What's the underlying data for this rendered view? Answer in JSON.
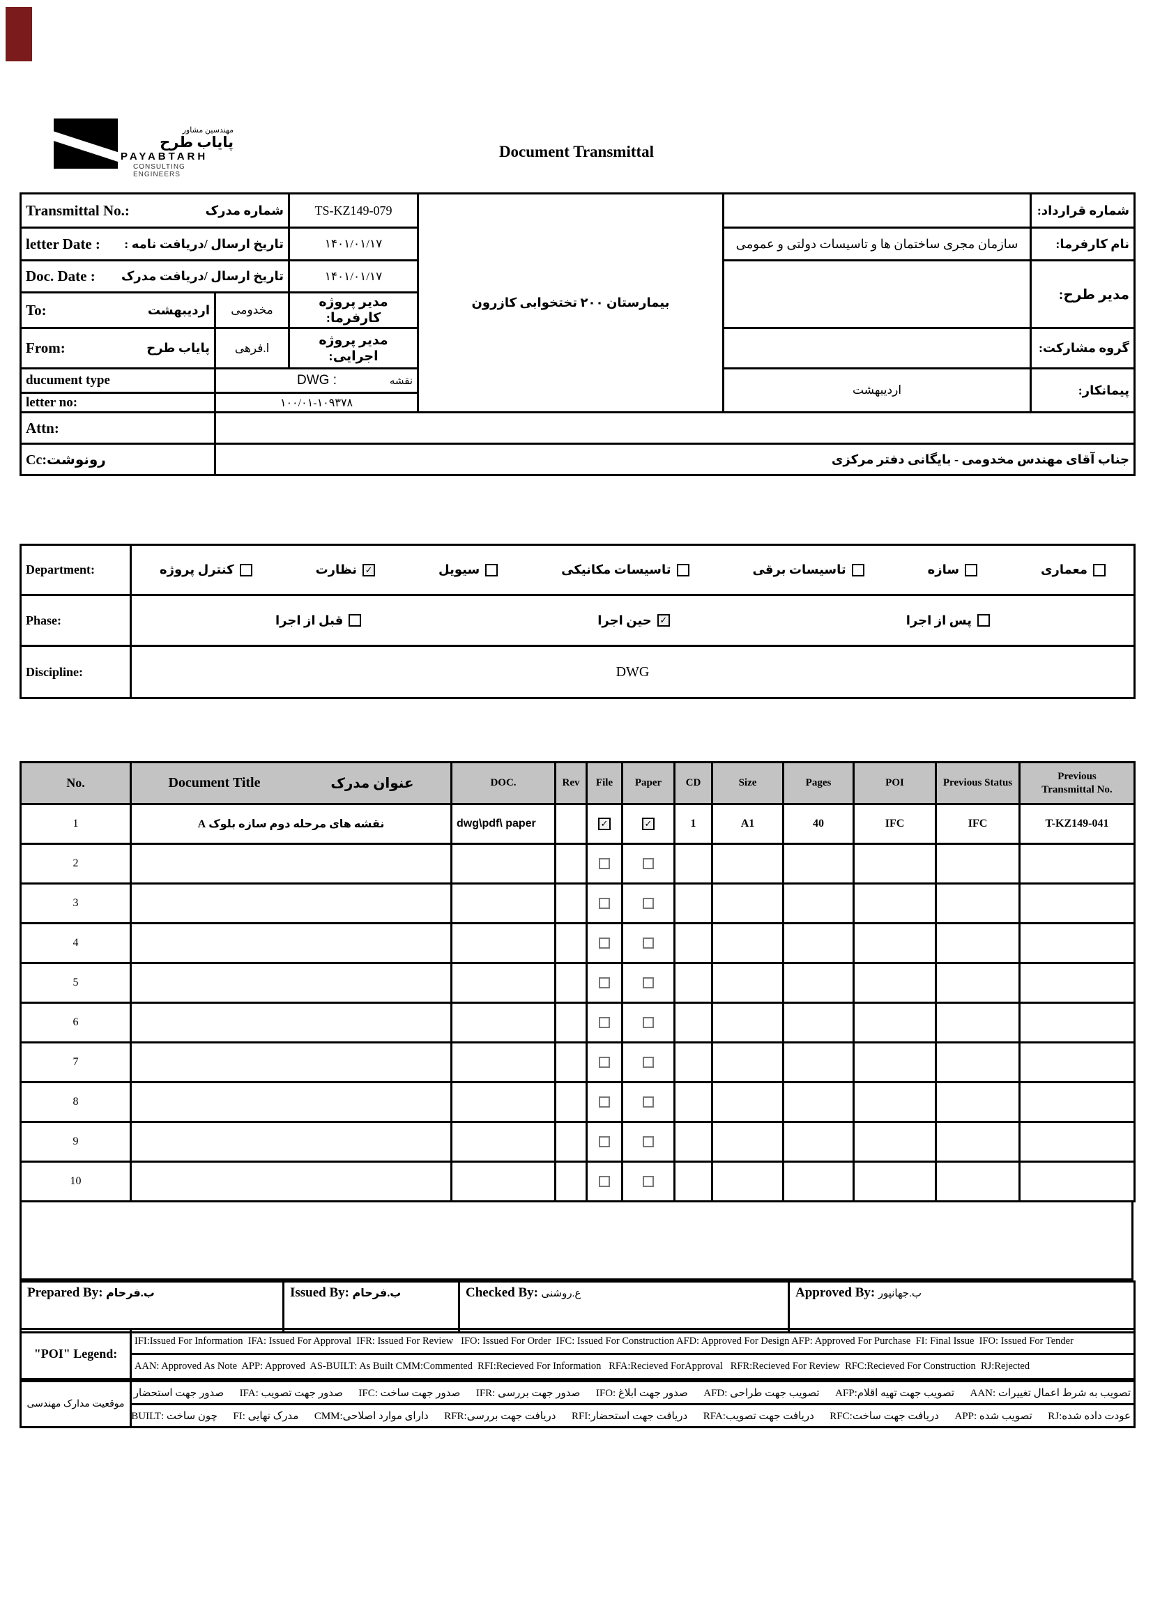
{
  "page": {
    "title": "Document Transmittal"
  },
  "logo": {
    "fa_small": "مهندسین مشاور",
    "fa_name": "پایاب طرح",
    "en_name": "PAYABTARH",
    "en_sub": "CONSULTING ENGINEERS"
  },
  "header": {
    "transmittal_no_label": "Transmittal No.:",
    "transmittal_no_label_fa": "شماره مدرک",
    "transmittal_no_value": "TS-KZ149-079",
    "letter_date_label": "letter Date :",
    "letter_date_label_fa": "تاریخ ارسال /دریافت نامه :",
    "letter_date_value": "۱۴۰۱/۰۱/۱۷",
    "doc_date_label": "Doc. Date :",
    "doc_date_label_fa": "تاریخ ارسال /دریافت مدرک",
    "doc_date_value": "۱۴۰۱/۰۱/۱۷",
    "to_label": "To:",
    "to_value": "اردیبهشت",
    "to_person": "مخدومی",
    "to_role_fa": "مدیر پروژه کارفرما:",
    "from_label": "From:",
    "from_value": "پایاب طرح",
    "from_person": "ا.فرهی",
    "from_role_fa": "مدیر پروژه اجرایی:",
    "document_type_label": "ducument type",
    "document_type_value": "DWG :",
    "document_type_fa": "نقشه",
    "letter_no_label": "letter no:",
    "letter_no_value": "۱۰۰/۰۱-۱۰۹۳۷۸",
    "attn_label": "Attn:",
    "attn_value": "",
    "cc_label": "Cc:رونوشت",
    "cc_value": "جناب آقای مهندس مخدومی - بایگانی دفتر مرکزی",
    "project_name": "بیمارستان ۲۰۰ تختخوابی کازرون",
    "contract_no_label": "شماره قرارداد:",
    "contract_no_value": "",
    "client_label": "نام کارفرما:",
    "client_value": "سازمان مجری ساختمان ها و تاسیسات دولتی و عمومی",
    "design_manager_label": "مدیر طرح:",
    "design_manager_value": "",
    "jv_label": "گروه مشارکت:",
    "jv_value": "",
    "contractor_label": "پیمانکار:",
    "contractor_value": "اردیبهشت"
  },
  "classification": {
    "department_label": "Department:",
    "departments": [
      {
        "label": "معماری",
        "checked": false
      },
      {
        "label": "سازه",
        "checked": false
      },
      {
        "label": "تاسیسات برقی",
        "checked": false
      },
      {
        "label": "تاسیسات مکانیکی",
        "checked": false
      },
      {
        "label": "سیویل",
        "checked": false
      },
      {
        "label": "نظارت",
        "checked": true
      },
      {
        "label": "کنترل پروژه",
        "checked": false
      }
    ],
    "phase_label": "Phase:",
    "phases": [
      {
        "label": "پس از اجرا",
        "checked": false
      },
      {
        "label": "حین اجرا",
        "checked": true
      },
      {
        "label": "قبل از اجرا",
        "checked": false
      }
    ],
    "discipline_label": "Discipline:",
    "discipline_value": "DWG"
  },
  "documents_table": {
    "headers": {
      "no": "No.",
      "title_en": "Document Title",
      "title_fa": "عنوان مدرک",
      "doc": "DOC.",
      "rev": "Rev",
      "file": "File",
      "paper": "Paper",
      "cd": "CD",
      "size": "Size",
      "pages": "Pages",
      "poi": "POI",
      "prev_status": "Previous Status",
      "prev_transmittal": "Previous Transmittal No."
    },
    "rows": [
      {
        "no": "1",
        "title": "نقشه های مرحله دوم سازه بلوک A",
        "doc": "dwg\\pdf\\ paper",
        "rev": "",
        "file": true,
        "paper": true,
        "cd": "1",
        "size": "A1",
        "pages": "40",
        "poi": "IFC",
        "prev_status": "IFC",
        "prev_transmittal": "T-KZ149-041"
      },
      {
        "no": "2",
        "title": "",
        "doc": "",
        "rev": "",
        "file": false,
        "paper": false,
        "cd": "",
        "size": "",
        "pages": "",
        "poi": "",
        "prev_status": "",
        "prev_transmittal": ""
      },
      {
        "no": "3",
        "title": "",
        "doc": "",
        "rev": "",
        "file": false,
        "paper": false,
        "cd": "",
        "size": "",
        "pages": "",
        "poi": "",
        "prev_status": "",
        "prev_transmittal": ""
      },
      {
        "no": "4",
        "title": "",
        "doc": "",
        "rev": "",
        "file": false,
        "paper": false,
        "cd": "",
        "size": "",
        "pages": "",
        "poi": "",
        "prev_status": "",
        "prev_transmittal": ""
      },
      {
        "no": "5",
        "title": "",
        "doc": "",
        "rev": "",
        "file": false,
        "paper": false,
        "cd": "",
        "size": "",
        "pages": "",
        "poi": "",
        "prev_status": "",
        "prev_transmittal": ""
      },
      {
        "no": "6",
        "title": "",
        "doc": "",
        "rev": "",
        "file": false,
        "paper": false,
        "cd": "",
        "size": "",
        "pages": "",
        "poi": "",
        "prev_status": "",
        "prev_transmittal": ""
      },
      {
        "no": "7",
        "title": "",
        "doc": "",
        "rev": "",
        "file": false,
        "paper": false,
        "cd": "",
        "size": "",
        "pages": "",
        "poi": "",
        "prev_status": "",
        "prev_transmittal": ""
      },
      {
        "no": "8",
        "title": "",
        "doc": "",
        "rev": "",
        "file": false,
        "paper": false,
        "cd": "",
        "size": "",
        "pages": "",
        "poi": "",
        "prev_status": "",
        "prev_transmittal": ""
      },
      {
        "no": "9",
        "title": "",
        "doc": "",
        "rev": "",
        "file": false,
        "paper": false,
        "cd": "",
        "size": "",
        "pages": "",
        "poi": "",
        "prev_status": "",
        "prev_transmittal": ""
      },
      {
        "no": "10",
        "title": "",
        "doc": "",
        "rev": "",
        "file": false,
        "paper": false,
        "cd": "",
        "size": "",
        "pages": "",
        "poi": "",
        "prev_status": "",
        "prev_transmittal": ""
      }
    ]
  },
  "signatures": {
    "prepared_label": "Prepared By:",
    "prepared_name": "ب.فرحام",
    "issued_label": "Issued By:",
    "issued_name": "ب.فرحام",
    "checked_label": "Checked By:",
    "checked_name": "ع.روشنی",
    "approved_label": "Approved By:",
    "approved_name": "ب.جهانپور"
  },
  "poi_legend": {
    "label": "\"POI\" Legend:",
    "line1": "IFI:Issued For Information  IFA: Issued For Approval  IFR: Issued For Review   IFO: Issued For Order  IFC: Issued For Construction AFD: Approved For Design AFP: Approved For Purchase  FI: Final Issue  IFO: Issued For Tender",
    "line2": "AAN: Approved As Note  APP: Approved  AS-BUILT: As Built CMM:Commented  RFI:Recieved For Information   RFA:Recieved ForApproval   RFR:Recieved For Review  RFC:Recieved For Construction  RJ:Rejected"
  },
  "fa_legend": {
    "label": "موقعیت مدارک مهندسی",
    "line1": "تصویب به شرط اعمال تغییرات :AAN      تصویب جهت تهیه اقلام:AFP      تصویب جهت طراحی :AFD      صدور جهت ابلاغ :IFO      صدور جهت بررسی :IFR      صدور جهت ساخت :IFC      صدور جهت تصویب :IFA      صدور جهت استحضار :IFI",
    "line2": "عودت داده شده:RJ      تصویب شده :APP      دریافت جهت ساخت:RFC      دریافت جهت تصویب:RFA      دریافت جهت استحضار:RFI      دریافت جهت بررسی:RFR      دارای موارد اصلاحی:CMM      مدرک نهایی :FI      چون ساخت :AS-BUILT"
  }
}
